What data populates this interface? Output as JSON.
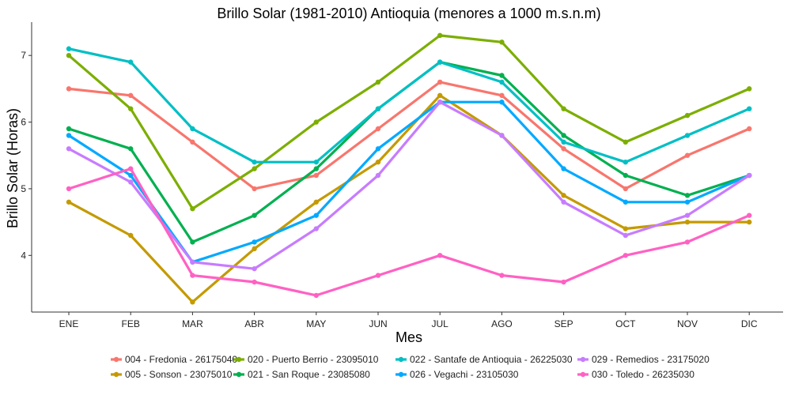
{
  "chart_data": {
    "type": "line",
    "title": "Brillo Solar (1981-2010) Antioquia (menores a 1000 m.s.n.m)",
    "xlabel": "Mes",
    "ylabel": "Brillo Solar (Horas)",
    "categories": [
      "ENE",
      "FEB",
      "MAR",
      "ABR",
      "MAY",
      "JUN",
      "JUL",
      "AGO",
      "SEP",
      "OCT",
      "NOV",
      "DIC"
    ],
    "ylim": [
      3.15,
      7.5
    ],
    "yticks": [
      4,
      5,
      6,
      7
    ],
    "grid": false,
    "legend_position": "bottom",
    "series": [
      {
        "name": "004 - Fredonia - 26175040",
        "color": "#F8766D",
        "values": [
          6.5,
          6.4,
          5.7,
          5.0,
          5.2,
          5.9,
          6.6,
          6.4,
          5.6,
          5.0,
          5.5,
          5.9
        ]
      },
      {
        "name": "005 - Sonson - 23075010",
        "color": "#C49A00",
        "values": [
          4.8,
          4.3,
          3.3,
          4.1,
          4.8,
          5.4,
          6.4,
          5.8,
          4.9,
          4.4,
          4.5,
          4.5
        ]
      },
      {
        "name": "020 - Puerto Berrio - 23095010",
        "color": "#7CAE00",
        "values": [
          7.0,
          6.2,
          4.7,
          5.3,
          6.0,
          6.6,
          7.3,
          7.2,
          6.2,
          5.7,
          6.1,
          6.5
        ]
      },
      {
        "name": "021 - San Roque - 23085080",
        "color": "#00B050",
        "values": [
          5.9,
          5.6,
          4.2,
          4.6,
          5.3,
          6.2,
          6.9,
          6.7,
          5.8,
          5.2,
          4.9,
          5.2
        ]
      },
      {
        "name": "022 - Santafe de Antioquia - 26225030",
        "color": "#00BFC4",
        "values": [
          7.1,
          6.9,
          5.9,
          5.4,
          5.4,
          6.2,
          6.9,
          6.6,
          5.7,
          5.4,
          5.8,
          6.2
        ]
      },
      {
        "name": "026 - Vegachi - 23105030",
        "color": "#00A9FF",
        "values": [
          5.8,
          5.2,
          3.9,
          4.2,
          4.6,
          5.6,
          6.3,
          6.3,
          5.3,
          4.8,
          4.8,
          5.2
        ]
      },
      {
        "name": "029 - Remedios - 23175020",
        "color": "#C77CFF",
        "values": [
          5.6,
          5.1,
          3.9,
          3.8,
          4.4,
          5.2,
          6.3,
          5.8,
          4.8,
          4.3,
          4.6,
          5.2
        ]
      },
      {
        "name": "030 - Toledo - 26235030",
        "color": "#FF61C3",
        "values": [
          5.0,
          5.3,
          3.7,
          3.6,
          3.4,
          3.7,
          4.0,
          3.7,
          3.6,
          4.0,
          4.2,
          4.6
        ]
      }
    ]
  }
}
